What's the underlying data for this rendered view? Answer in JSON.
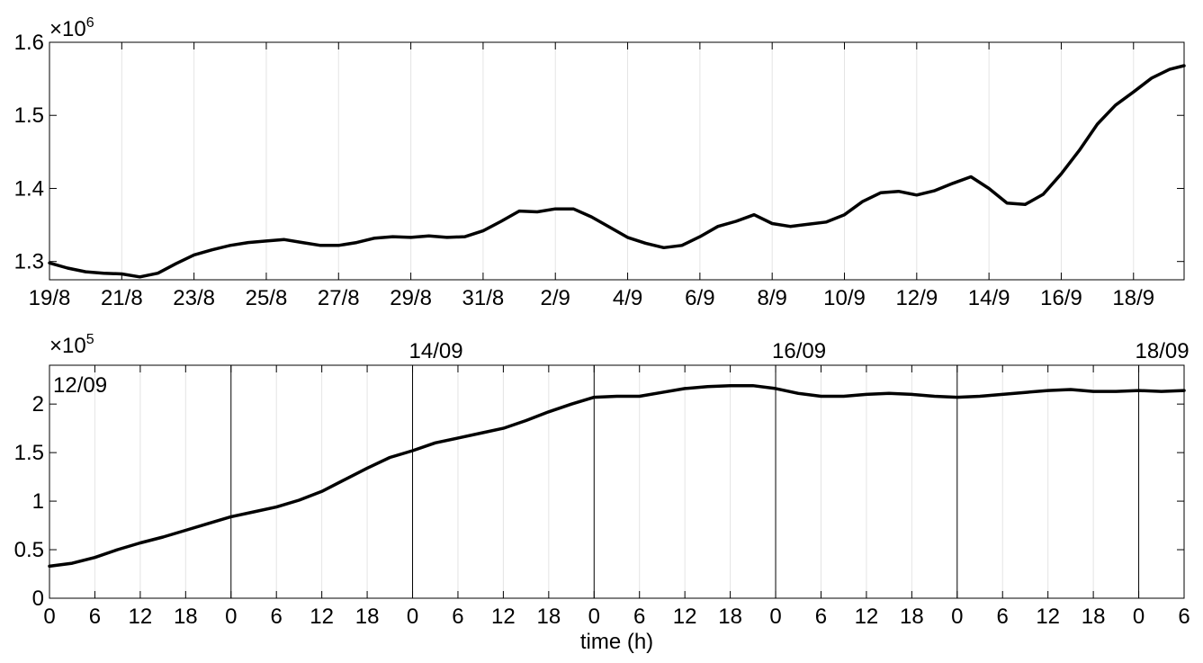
{
  "chart_data": [
    {
      "type": "line",
      "xlabel": "",
      "ylabel": "",
      "multiplier_base": "×10",
      "multiplier_exp": "6",
      "y_scale": 1000000,
      "ylim": [
        1.275,
        1.6
      ],
      "yticks": [
        1.3,
        1.4,
        1.5,
        1.6
      ],
      "ytick_labels": [
        "1.3",
        "1.4",
        "1.5",
        "1.6"
      ],
      "xlim": [
        0,
        31.4
      ],
      "xticks": [
        0,
        2,
        4,
        6,
        8,
        10,
        12,
        14,
        16,
        18,
        20,
        22,
        24,
        26,
        28,
        30
      ],
      "xtick_labels": [
        "19/8",
        "21/8",
        "23/8",
        "25/8",
        "27/8",
        "29/8",
        "31/8",
        "2/9",
        "4/9",
        "6/9",
        "8/9",
        "10/9",
        "12/9",
        "14/9",
        "16/9",
        "18/9"
      ],
      "grid_x": [
        0,
        2,
        4,
        6,
        8,
        10,
        12,
        14,
        16,
        18,
        20,
        22,
        24,
        26,
        28,
        30
      ],
      "series": [
        {
          "name": "",
          "color": "#000000",
          "x": [
            0,
            0.5,
            1,
            1.5,
            2,
            2.5,
            3,
            3.5,
            4,
            4.5,
            5,
            5.5,
            6,
            6.5,
            7,
            7.5,
            8,
            8.5,
            9,
            9.5,
            10,
            10.5,
            11,
            11.5,
            12,
            12.5,
            13,
            13.5,
            14,
            14.5,
            15,
            15.5,
            16,
            16.5,
            17,
            17.5,
            18,
            18.5,
            19,
            19.5,
            20,
            20.5,
            21,
            21.5,
            22,
            22.5,
            23,
            23.5,
            24,
            24.5,
            25,
            25.5,
            26,
            26.5,
            27,
            27.5,
            28,
            28.5,
            29,
            29.5,
            30,
            30.5,
            31,
            31.4
          ],
          "y": [
            1.298,
            1.291,
            1.286,
            1.284,
            1.283,
            1.279,
            1.284,
            1.297,
            1.309,
            1.316,
            1.322,
            1.326,
            1.328,
            1.33,
            1.326,
            1.322,
            1.322,
            1.326,
            1.332,
            1.334,
            1.333,
            1.335,
            1.333,
            1.334,
            1.342,
            1.355,
            1.369,
            1.368,
            1.372,
            1.372,
            1.361,
            1.347,
            1.333,
            1.325,
            1.319,
            1.322,
            1.334,
            1.348,
            1.355,
            1.364,
            1.352,
            1.348,
            1.351,
            1.354,
            1.364,
            1.382,
            1.394,
            1.396,
            1.391,
            1.397,
            1.407,
            1.416,
            1.4,
            1.38,
            1.378,
            1.392,
            1.42,
            1.452,
            1.488,
            1.514,
            1.532,
            1.551,
            1.563,
            1.568
          ]
        }
      ]
    },
    {
      "type": "line",
      "xlabel": "time (h)",
      "ylabel": "",
      "multiplier_base": "×10",
      "multiplier_exp": "5",
      "y_scale": 100000,
      "ylim": [
        0,
        2.4
      ],
      "yticks": [
        0,
        0.5,
        1,
        1.5,
        2
      ],
      "ytick_labels": [
        "0",
        "0.5",
        "1",
        "1.5",
        "2"
      ],
      "xlim": [
        0,
        150
      ],
      "xticks": [
        0,
        6,
        12,
        18,
        24,
        30,
        36,
        42,
        48,
        54,
        60,
        66,
        72,
        78,
        84,
        90,
        96,
        102,
        108,
        114,
        120,
        126,
        132,
        138,
        144,
        150
      ],
      "xtick_labels": [
        "0",
        "6",
        "12",
        "18",
        "0",
        "6",
        "12",
        "18",
        "0",
        "6",
        "12",
        "18",
        "0",
        "6",
        "12",
        "18",
        "0",
        "6",
        "12",
        "18",
        "0",
        "6",
        "12",
        "18",
        "0",
        "6"
      ],
      "grid_x": [
        6,
        12,
        18,
        30,
        36,
        42,
        54,
        60,
        66,
        78,
        84,
        90,
        102,
        108,
        114,
        126,
        132,
        138
      ],
      "day_lines": [
        24,
        48,
        72,
        96,
        120,
        144
      ],
      "annotations": [
        {
          "text": "12/09",
          "x": 0
        },
        {
          "text": "14/09",
          "x": 48
        },
        {
          "text": "16/09",
          "x": 96
        },
        {
          "text": "18/09",
          "x": 144
        }
      ],
      "series": [
        {
          "name": "",
          "color": "#000000",
          "x": [
            0,
            3,
            6,
            9,
            12,
            15,
            18,
            21,
            24,
            27,
            30,
            33,
            36,
            39,
            42,
            45,
            48,
            51,
            54,
            57,
            60,
            63,
            66,
            69,
            72,
            75,
            78,
            81,
            84,
            87,
            90,
            93,
            96,
            99,
            102,
            105,
            108,
            111,
            114,
            117,
            120,
            123,
            126,
            129,
            132,
            135,
            138,
            141,
            144,
            147,
            150
          ],
          "y": [
            0.33,
            0.36,
            0.42,
            0.5,
            0.57,
            0.63,
            0.7,
            0.77,
            0.84,
            0.89,
            0.94,
            1.01,
            1.1,
            1.22,
            1.34,
            1.45,
            1.52,
            1.6,
            1.65,
            1.7,
            1.75,
            1.83,
            1.92,
            2.0,
            2.07,
            2.08,
            2.08,
            2.12,
            2.16,
            2.18,
            2.19,
            2.19,
            2.16,
            2.11,
            2.08,
            2.08,
            2.1,
            2.11,
            2.1,
            2.08,
            2.07,
            2.08,
            2.1,
            2.12,
            2.14,
            2.15,
            2.13,
            2.13,
            2.14,
            2.13,
            2.14
          ]
        }
      ]
    }
  ]
}
